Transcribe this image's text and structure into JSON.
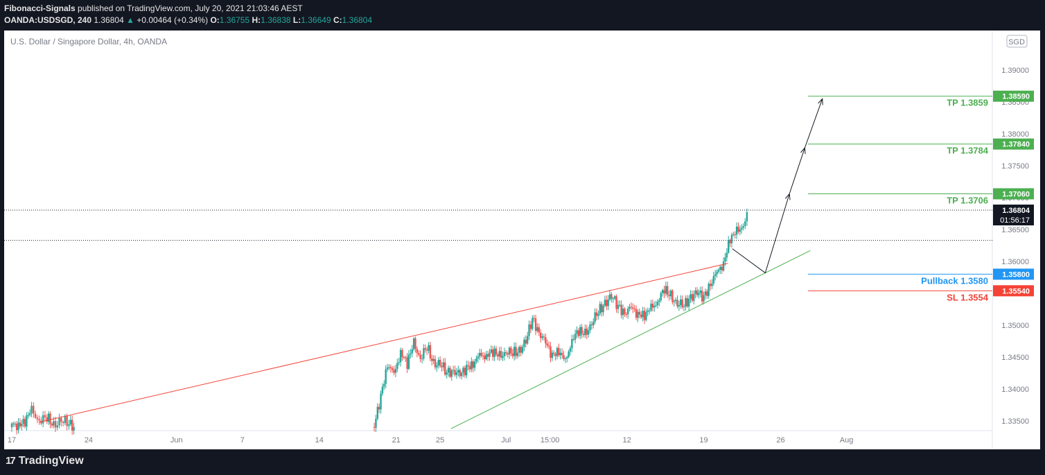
{
  "header": {
    "publisher": "Fibonacci-Signals",
    "published_text": "published on TradingView.com, July 20, 2021 21:03:46 AEST",
    "symbol": "OANDA:USDSGD, 240",
    "last": "1.36804",
    "change": "+0.00464 (+0.34%)",
    "open_label": "O:",
    "open": "1.36755",
    "high_label": "H:",
    "high": "1.36838",
    "low_label": "L:",
    "low": "1.36649",
    "close_label": "C:",
    "close": "1.36804"
  },
  "chart_title": "U.S. Dollar / Singapore Dollar, 4h, OANDA",
  "currency_badge": "SGD",
  "footer": {
    "brand": "TradingView"
  },
  "colors": {
    "up": "#26a69a",
    "down": "#ef5350",
    "target": "#4caf50",
    "pullback": "#2196f3",
    "stop": "#f44336",
    "resistance": "#f44336",
    "support": "#4caf50"
  },
  "chart_data": {
    "type": "candlestick",
    "ylim": [
      1.3325,
      1.3905
    ],
    "y_ticks": [
      "1.33500",
      "1.34000",
      "1.34500",
      "1.35000",
      "1.35500",
      "1.36000",
      "1.36500",
      "1.37000",
      "1.37500",
      "1.38000",
      "1.38500",
      "1.39000"
    ],
    "x_ticks": [
      {
        "label": "17",
        "day": 0
      },
      {
        "label": "24",
        "day": 7
      },
      {
        "label": "Jun",
        "day": 15
      },
      {
        "label": "7",
        "day": 21
      },
      {
        "label": "14",
        "day": 28
      },
      {
        "label": "21",
        "day": 35
      },
      {
        "label": "25",
        "day": 39
      },
      {
        "label": "Jul",
        "day": 45
      },
      {
        "label": "15:00",
        "day": 49
      },
      {
        "label": "12",
        "day": 56
      },
      {
        "label": "19",
        "day": 63
      },
      {
        "label": "26",
        "day": 70
      },
      {
        "label": "Aug",
        "day": 76
      }
    ],
    "current_price": {
      "value": "1.36804",
      "countdown": "01:56:17",
      "price": 1.36804
    },
    "dotted_line_price": 1.3633,
    "levels": [
      {
        "label": "TP 1.3859",
        "badge": "1.38590",
        "price": 1.3859,
        "kind": "target"
      },
      {
        "label": "TP 1.3784",
        "badge": "1.37840",
        "price": 1.3784,
        "kind": "target"
      },
      {
        "label": "TP 1.3706",
        "badge": "1.37060",
        "price": 1.3706,
        "kind": "target"
      },
      {
        "label": "Pullback 1.3580",
        "badge": "1.35800",
        "price": 1.358,
        "kind": "pullback"
      },
      {
        "label": "SL 1.3554",
        "badge": "1.35540",
        "price": 1.3554,
        "kind": "stop"
      }
    ],
    "trendlines": [
      {
        "kind": "resistance",
        "from": {
          "day": 2.5,
          "price": 1.3348
        },
        "to": {
          "day": 65.2,
          "price": 1.3597
        }
      },
      {
        "kind": "support",
        "from": {
          "day": 40,
          "price": 1.3338
        },
        "to": {
          "day": 72.7,
          "price": 1.3617
        }
      }
    ],
    "projection_path": [
      {
        "day": 65.6,
        "price": 1.362
      },
      {
        "day": 68.6,
        "price": 1.3582
      },
      {
        "day": 70.8,
        "price": 1.3706
      },
      {
        "day": 72.2,
        "price": 1.3778
      },
      {
        "day": 73.8,
        "price": 1.3855
      }
    ],
    "price_path": [
      [
        0,
        1.3342
      ],
      [
        0.6,
        1.3345
      ],
      [
        1.2,
        1.335
      ],
      [
        1.8,
        1.3365
      ],
      [
        2.5,
        1.3352
      ],
      [
        3.2,
        1.3355
      ],
      [
        3.8,
        1.3342
      ],
      [
        4.5,
        1.3352
      ],
      [
        5.2,
        1.3345
      ],
      [
        5.8,
        1.334
      ],
      [
        33,
        1.334
      ],
      [
        33.6,
        1.339
      ],
      [
        34.2,
        1.344
      ],
      [
        34.8,
        1.342
      ],
      [
        35.4,
        1.346
      ],
      [
        36,
        1.344
      ],
      [
        36.6,
        1.347
      ],
      [
        37.2,
        1.345
      ],
      [
        37.8,
        1.3465
      ],
      [
        38.4,
        1.344
      ],
      [
        39,
        1.344
      ],
      [
        39.6,
        1.3425
      ],
      [
        40.2,
        1.343
      ],
      [
        40.8,
        1.342
      ],
      [
        41.4,
        1.3435
      ],
      [
        42,
        1.344
      ],
      [
        42.6,
        1.345
      ],
      [
        43.2,
        1.3455
      ],
      [
        43.8,
        1.3458
      ],
      [
        44.4,
        1.345
      ],
      [
        45,
        1.346
      ],
      [
        45.6,
        1.3455
      ],
      [
        46.2,
        1.346
      ],
      [
        46.8,
        1.3475
      ],
      [
        47.4,
        1.351
      ],
      [
        48,
        1.349
      ],
      [
        48.6,
        1.347
      ],
      [
        49.2,
        1.3455
      ],
      [
        49.8,
        1.346
      ],
      [
        50.4,
        1.344
      ],
      [
        51,
        1.348
      ],
      [
        51.6,
        1.349
      ],
      [
        52.2,
        1.3485
      ],
      [
        52.8,
        1.3505
      ],
      [
        53.4,
        1.352
      ],
      [
        54,
        1.3535
      ],
      [
        54.6,
        1.3545
      ],
      [
        55.2,
        1.353
      ],
      [
        55.8,
        1.352
      ],
      [
        56.4,
        1.3525
      ],
      [
        57,
        1.352
      ],
      [
        57.6,
        1.3515
      ],
      [
        58.2,
        1.3525
      ],
      [
        58.8,
        1.354
      ],
      [
        59.4,
        1.3555
      ],
      [
        60,
        1.3545
      ],
      [
        60.6,
        1.3535
      ],
      [
        61.2,
        1.353
      ],
      [
        61.8,
        1.3545
      ],
      [
        62.4,
        1.355
      ],
      [
        63,
        1.3545
      ],
      [
        63.6,
        1.3565
      ],
      [
        64.2,
        1.358
      ],
      [
        64.8,
        1.36
      ],
      [
        65.4,
        1.3635
      ],
      [
        66,
        1.3645
      ],
      [
        66.6,
        1.366
      ],
      [
        67.1,
        1.368
      ]
    ]
  }
}
